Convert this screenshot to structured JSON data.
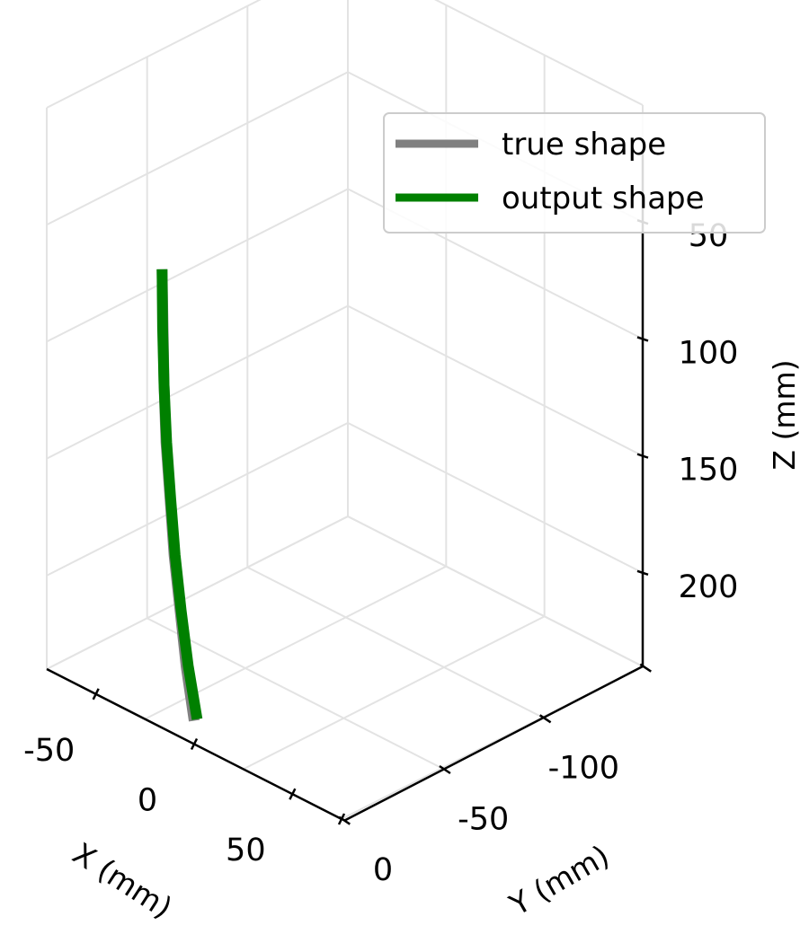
{
  "chart_data": {
    "type": "line",
    "projection": "3d",
    "title": "",
    "xlabel": "X (mm)",
    "ylabel": "Y (mm)",
    "zlabel": "Z (mm)",
    "z_inverted": true,
    "grid": true,
    "legend_placement": "top-right",
    "x_ticks": [
      -50,
      0,
      50
    ],
    "y_ticks": [
      0,
      -50,
      -100
    ],
    "z_ticks": [
      50,
      100,
      150,
      200
    ],
    "series": [
      {
        "name": "true shape",
        "color": "#808080",
        "points": [
          {
            "x": 0,
            "y": 0,
            "z": 230
          },
          {
            "x": 0,
            "y": 4,
            "z": 205
          },
          {
            "x": 0,
            "y": 7,
            "z": 180
          },
          {
            "x": 0,
            "y": 10,
            "z": 155
          },
          {
            "x": 0,
            "y": 12,
            "z": 130
          },
          {
            "x": 0,
            "y": 14,
            "z": 105
          },
          {
            "x": 0,
            "y": 15,
            "z": 80
          },
          {
            "x": 0,
            "y": 15.5,
            "z": 55
          },
          {
            "x": 0,
            "y": 16,
            "z": 30
          }
        ]
      },
      {
        "name": "output shape",
        "color": "#008000",
        "points": [
          {
            "x": 0,
            "y": -1.5,
            "z": 230
          },
          {
            "x": 0,
            "y": 3,
            "z": 205
          },
          {
            "x": 0,
            "y": 6.5,
            "z": 180
          },
          {
            "x": 0,
            "y": 9.5,
            "z": 155
          },
          {
            "x": 0,
            "y": 11.7,
            "z": 130
          },
          {
            "x": 0,
            "y": 13.7,
            "z": 105
          },
          {
            "x": 0,
            "y": 15,
            "z": 80
          },
          {
            "x": 0,
            "y": 15.7,
            "z": 55
          },
          {
            "x": 0,
            "y": 16,
            "z": 30
          }
        ]
      }
    ]
  }
}
